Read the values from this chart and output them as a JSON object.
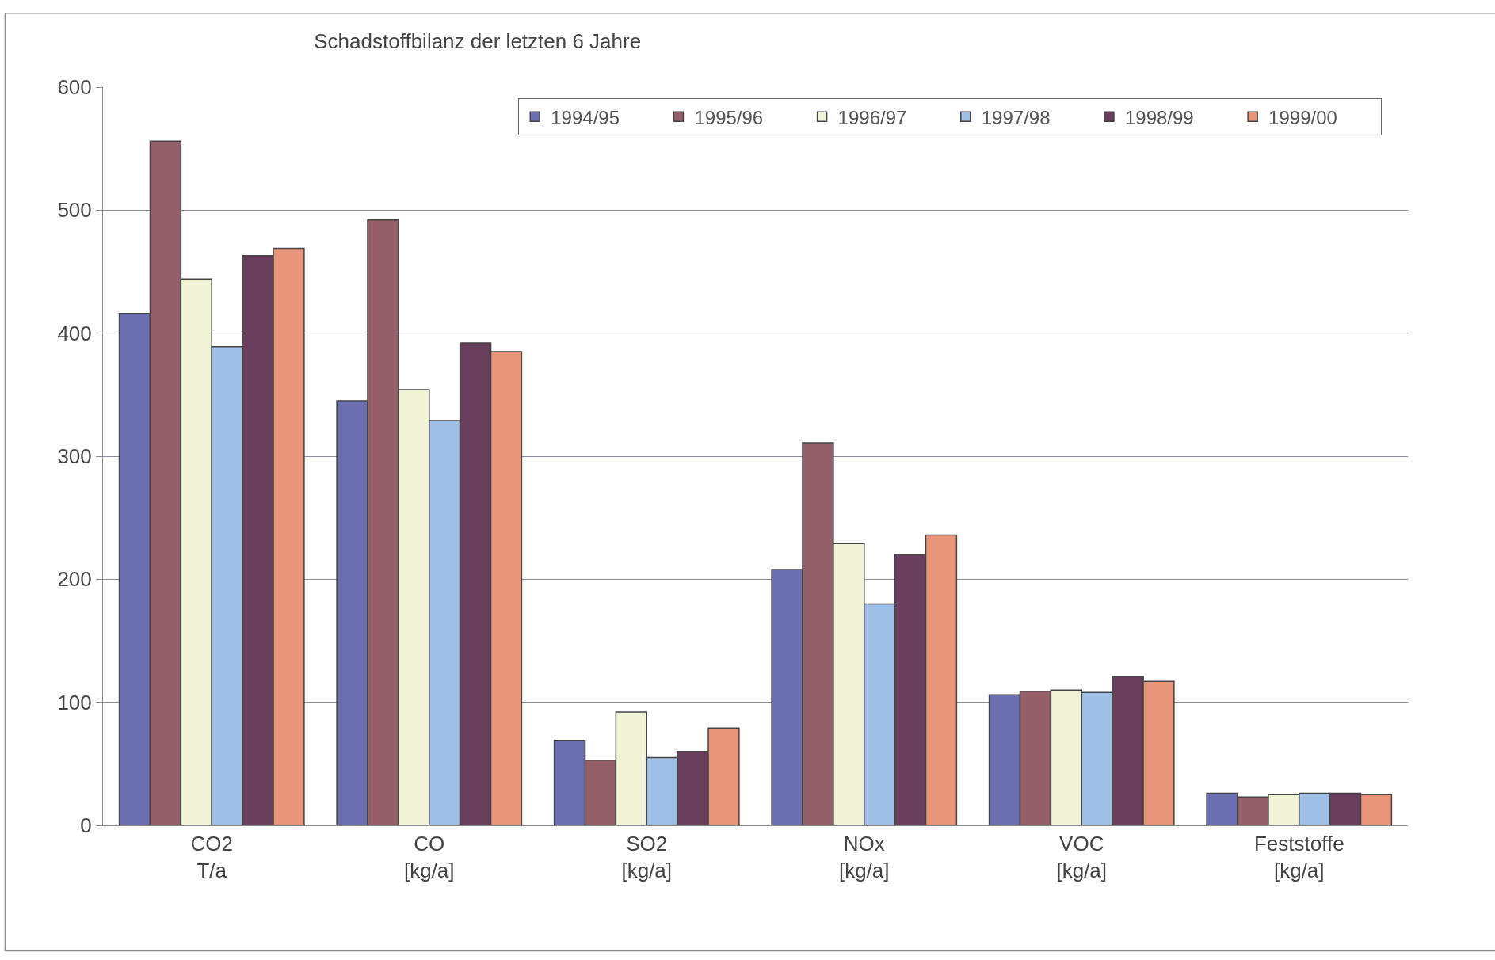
{
  "chart_data": {
    "type": "bar",
    "title": "Schadstoffbilanz der letzten 6 Jahre",
    "categories": [
      "CO2\nT/a",
      "CO\n[kg/a]",
      "SO2\n[kg/a]",
      "NOx\n[kg/a]",
      "VOC\n[kg/a]",
      "Feststoffe\n[kg/a]"
    ],
    "series": [
      {
        "name": "1994/95",
        "color": "#6b6fb0",
        "values": [
          416,
          345,
          69,
          208,
          106,
          26
        ]
      },
      {
        "name": "1995/96",
        "color": "#955f6a",
        "values": [
          556,
          492,
          53,
          311,
          109,
          23
        ]
      },
      {
        "name": "1996/97",
        "color": "#f1f3d6",
        "values": [
          444,
          354,
          92,
          229,
          110,
          25
        ]
      },
      {
        "name": "1997/98",
        "color": "#9fbfe6",
        "values": [
          389,
          329,
          55,
          180,
          108,
          26
        ]
      },
      {
        "name": "1998/99",
        "color": "#6a3f5e",
        "values": [
          463,
          392,
          60,
          220,
          121,
          26
        ]
      },
      {
        "name": "1999/00",
        "color": "#e8957a",
        "values": [
          469,
          385,
          79,
          236,
          117,
          25
        ]
      }
    ],
    "ylim": [
      0,
      600
    ],
    "yticks": [
      0,
      100,
      200,
      300,
      400,
      500,
      600
    ],
    "grid": "y",
    "legend": "top right"
  }
}
